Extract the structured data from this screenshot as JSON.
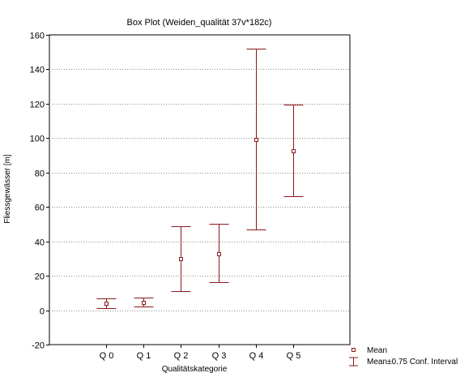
{
  "chart_data": {
    "type": "box",
    "title": "Box Plot (Weiden_qualität 37v*182c)",
    "xlabel": "Qualitätskategorie",
    "ylabel": "Fliessgewässer [m]",
    "categories": [
      "Q 0",
      "Q 1",
      "Q 2",
      "Q 3",
      "Q 4",
      "Q 5"
    ],
    "mean": [
      4,
      4.5,
      30,
      33,
      99,
      92.5
    ],
    "ci_lower": [
      1,
      2,
      11,
      16.5,
      47,
      66
    ],
    "ci_upper": [
      7,
      7.5,
      49,
      50,
      152,
      119.5
    ],
    "ylim": [
      -20,
      160
    ],
    "yticks": [
      "160",
      "140",
      "120",
      "100",
      "80",
      "60",
      "40",
      "20",
      "0",
      "-20"
    ],
    "grid": true,
    "series_color": "#8b1a1a",
    "legend": {
      "placement": "bottom-right",
      "mean_label": "Mean",
      "interval_label": "Mean±0.75 Conf. Interval"
    }
  }
}
